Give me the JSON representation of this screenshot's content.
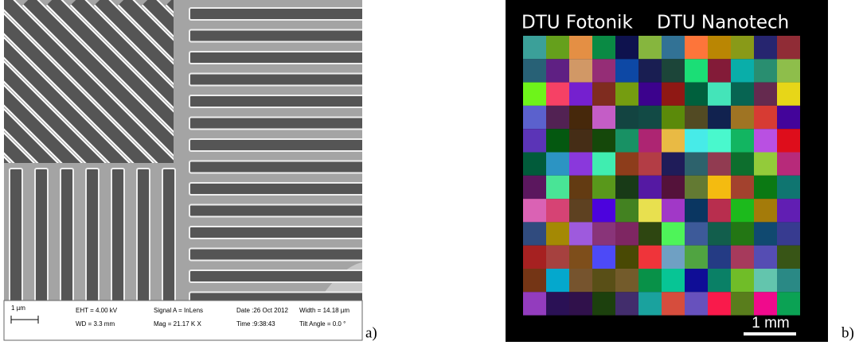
{
  "panels": [
    {
      "label": "a)",
      "scale_bar": "1 µm",
      "info": [
        "EHT = 4.00 kV",
        "WD = 3.3 mm",
        "Signal A = InLens",
        "Mag = 21.17 K X",
        "Date :26 Oct 2012",
        "Time :9:38:43",
        "Width = 14.18 µm",
        "Tilt Angle = 0.0 °"
      ]
    },
    {
      "label": "b)",
      "scale_bar": "1 mm",
      "header": [
        "DTU Fotonik",
        "DTU Nanotech"
      ]
    }
  ]
}
